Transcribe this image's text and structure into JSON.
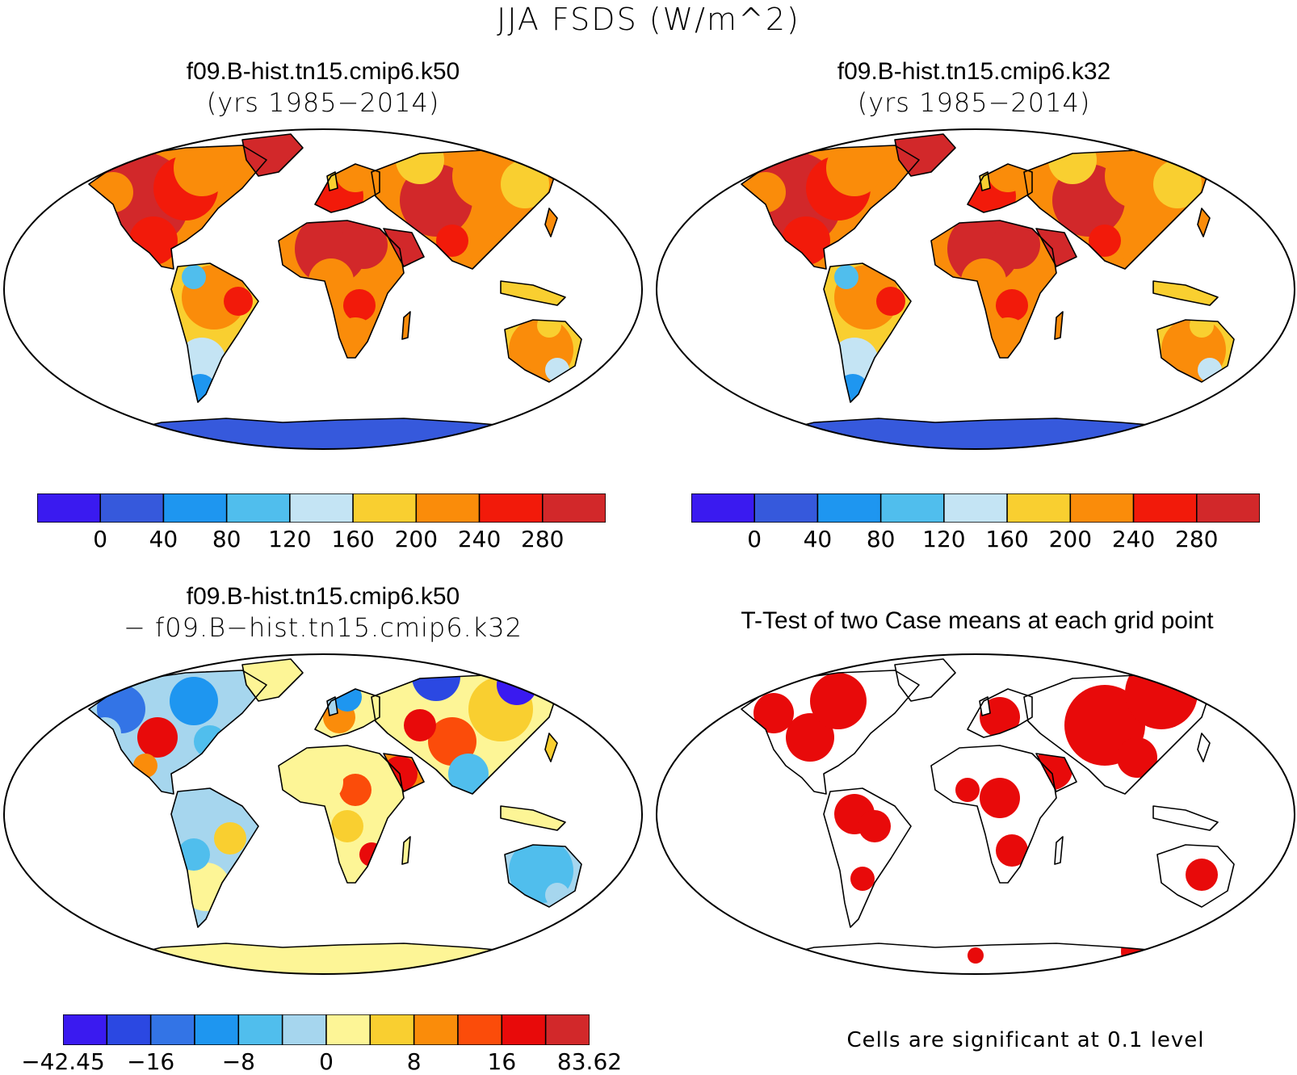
{
  "title": "JJA FSDS (W/m^2)",
  "panels": [
    {
      "line1": "f09.B-hist.tn15.cmip6.k50",
      "line2": "(yrs 1985−2014)"
    },
    {
      "line1": "f09.B-hist.tn15.cmip6.k32",
      "line2": "(yrs 1985−2014)"
    },
    {
      "line1": "f09.B-hist.tn15.cmip6.k50",
      "line2": "− f09.B−hist.tn15.cmip6.k32"
    },
    {
      "line1": "T-Test of two Case means at each grid point",
      "line2": ""
    }
  ],
  "colorbars": {
    "mean": {
      "colors": [
        "#3a1af0",
        "#3659dc",
        "#1e96f0",
        "#50beed",
        "#c4e4f4",
        "#f9cf30",
        "#fa8c0a",
        "#f21a0a",
        "#d2282a"
      ],
      "labels": [
        "0",
        "40",
        "80",
        "120",
        "160",
        "200",
        "240",
        "280"
      ]
    },
    "diff": {
      "colors": [
        "#3a1af0",
        "#2b48e2",
        "#3374e6",
        "#1e96f0",
        "#50beed",
        "#a6d6ee",
        "#fdf596",
        "#f9cf30",
        "#fa8c0a",
        "#fb4c0a",
        "#e80a0a",
        "#d2282a"
      ],
      "labels": [
        "−42.45",
        "−16",
        "−8",
        "0",
        "8",
        "16",
        "83.62"
      ]
    }
  },
  "footnote": "Cells are significant at 0.1 level",
  "colors": {
    "antarctica_mean": "#3659dc",
    "significant": "#e80a0a",
    "coast": "#000000"
  }
}
